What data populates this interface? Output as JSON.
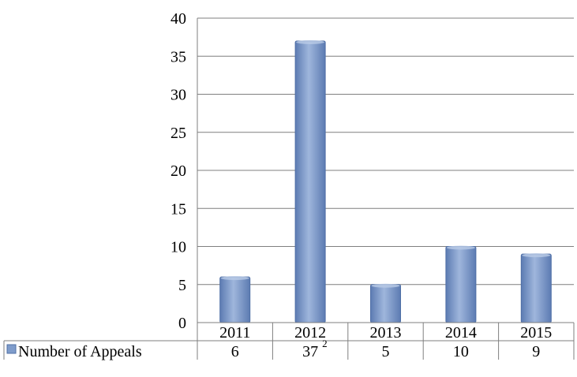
{
  "chart_data": {
    "type": "bar",
    "title": "",
    "xlabel": "",
    "ylabel": "",
    "ylim": [
      0,
      40
    ],
    "yticks": [
      "0",
      "5",
      "10",
      "15",
      "20",
      "25",
      "30",
      "35",
      "40"
    ],
    "grid": true,
    "categories": [
      "2011",
      "2012",
      "2013",
      "2014",
      "2015"
    ],
    "series": [
      {
        "name": "Number of Appeals",
        "values": [
          6,
          37,
          5,
          10,
          9
        ],
        "value_labels": [
          "6",
          "37",
          "5",
          "10",
          "9"
        ],
        "color": "#7f9ccb"
      }
    ],
    "data_table": true,
    "annotations": [
      {
        "category": "2012",
        "text": "2"
      }
    ]
  },
  "colors": {
    "bar_fill": "#7f9ccb",
    "bar_edge": "#4f6fa6",
    "gridline": "#7f7f7f",
    "table_border": "#7f7f7f"
  }
}
